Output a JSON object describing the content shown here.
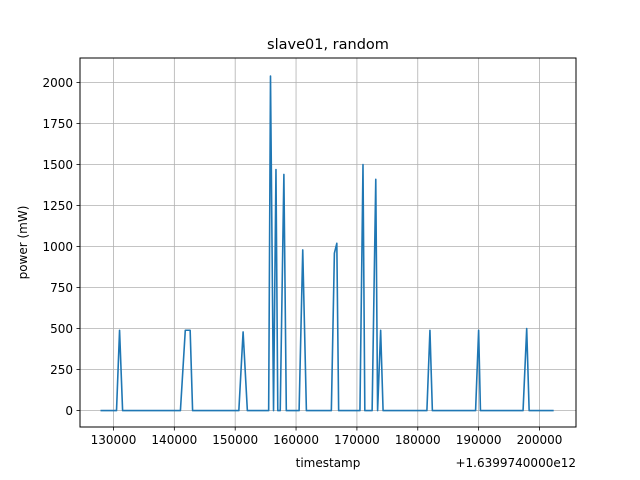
{
  "chart_data": {
    "type": "line",
    "title": "slave01, random",
    "xlabel": "timestamp",
    "ylabel": "power (mW)",
    "x_offset_label": "+1.6399740000e12",
    "xlim": [
      124500,
      206000
    ],
    "ylim": [
      -100,
      2150
    ],
    "x_ticks": [
      130000,
      140000,
      150000,
      160000,
      170000,
      180000,
      190000,
      200000
    ],
    "x_tick_labels": [
      "130000",
      "140000",
      "150000",
      "160000",
      "170000",
      "180000",
      "190000",
      "200000"
    ],
    "y_ticks": [
      0,
      250,
      500,
      750,
      1000,
      1250,
      1500,
      1750,
      2000
    ],
    "y_tick_labels": [
      "0",
      "250",
      "500",
      "750",
      "1000",
      "1250",
      "1500",
      "1750",
      "2000"
    ],
    "grid": true,
    "color": "#1f77b4",
    "series": [
      {
        "x": [
          128000,
          130500,
          131000,
          131500,
          141000,
          141800,
          142600,
          143000,
          150600,
          151300,
          152000,
          154000,
          155500,
          155800,
          156300,
          156700,
          157000,
          157400,
          158000,
          158400,
          159000,
          160500,
          161100,
          161700,
          165800,
          166300,
          166700,
          167000,
          169500,
          170500,
          171000,
          171300,
          172500,
          173100,
          173400,
          173900,
          174300,
          174700,
          181500,
          182000,
          182400,
          189500,
          190000,
          190300,
          197300,
          197900,
          198300,
          202200
        ],
        "y": [
          0,
          0,
          490,
          0,
          0,
          490,
          490,
          0,
          0,
          480,
          0,
          0,
          0,
          2040,
          0,
          1470,
          0,
          0,
          1440,
          0,
          0,
          0,
          980,
          0,
          0,
          960,
          1020,
          0,
          0,
          0,
          1500,
          0,
          0,
          1410,
          0,
          490,
          0,
          0,
          0,
          490,
          0,
          0,
          490,
          0,
          0,
          500,
          0,
          0
        ]
      }
    ]
  }
}
